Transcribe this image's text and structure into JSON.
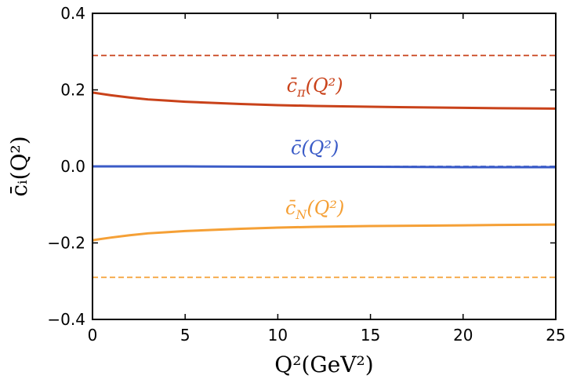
{
  "chart_data": {
    "type": "line",
    "xlabel": "Q²(GeV²)",
    "ylabel": "c̄ᵢ(Q²)",
    "xlim": [
      0,
      25
    ],
    "ylim": [
      -0.4,
      0.4
    ],
    "xticks": [
      0,
      5,
      10,
      15,
      20,
      25
    ],
    "xtick_labels": [
      "0",
      "5",
      "10",
      "15",
      "20",
      "25"
    ],
    "yticks": [
      -0.4,
      -0.2,
      0.0,
      0.2,
      0.4
    ],
    "ytick_labels": [
      "−0.4",
      "−0.2",
      "0.0",
      "0.2",
      "0.4"
    ],
    "grid": false,
    "series": [
      {
        "name": "c̄π(Q²)",
        "color": "#c9421a",
        "style": "solid",
        "x": [
          0,
          1,
          2,
          3,
          4,
          5,
          6,
          8,
          10,
          12,
          15,
          18,
          20,
          22,
          25
        ],
        "y": [
          0.193,
          0.186,
          0.18,
          0.175,
          0.172,
          0.169,
          0.167,
          0.163,
          0.16,
          0.158,
          0.156,
          0.154,
          0.153,
          0.152,
          0.151
        ]
      },
      {
        "name": "c̄(Q²)",
        "color": "#3a5bc7",
        "style": "solid",
        "x": [
          0,
          5,
          10,
          15,
          20,
          25
        ],
        "y": [
          0.0,
          0.0,
          -0.001,
          -0.001,
          -0.002,
          -0.002
        ]
      },
      {
        "name": "c̄N(Q²)",
        "color": "#f5a036",
        "style": "solid",
        "x": [
          0,
          1,
          2,
          3,
          4,
          5,
          6,
          8,
          10,
          12,
          15,
          18,
          20,
          22,
          25
        ],
        "y": [
          -0.193,
          -0.186,
          -0.18,
          -0.175,
          -0.172,
          -0.169,
          -0.167,
          -0.163,
          -0.16,
          -0.158,
          -0.156,
          -0.155,
          -0.154,
          -0.153,
          -0.152
        ]
      },
      {
        "color": "#c9421a",
        "style": "dashed",
        "x": [
          0,
          25
        ],
        "y": [
          0.29,
          0.29
        ]
      },
      {
        "color": "#3a5bc7",
        "style": "dashed",
        "x": [
          0,
          25
        ],
        "y": [
          0.0,
          0.0
        ]
      },
      {
        "color": "#f5a036",
        "style": "dashed",
        "x": [
          0,
          25
        ],
        "y": [
          -0.29,
          -0.29
        ]
      }
    ],
    "annotations": [
      {
        "series": "pi",
        "base": "c̄",
        "sub": "π",
        "arg": "(Q²)",
        "color": "#c9421a",
        "x": 12.0,
        "y": 0.195
      },
      {
        "series": "avg",
        "base": "c̄",
        "sub": "",
        "arg": "(Q²)",
        "color": "#3a5bc7",
        "x": 12.0,
        "y": 0.032
      },
      {
        "series": "nucleon",
        "base": "c̄",
        "sub": "N",
        "arg": "(Q²)",
        "color": "#f5a036",
        "x": 12.0,
        "y": -0.125
      }
    ]
  }
}
